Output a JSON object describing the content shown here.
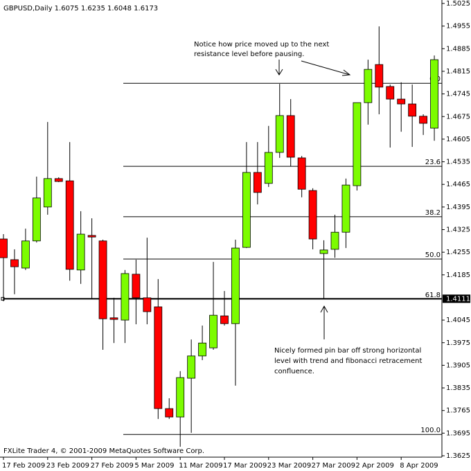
{
  "chart_data": {
    "type": "candlestick",
    "title": "GBPUSD,Daily  1.6075 1.6235 1.6048 1.6173",
    "footer": "FXLite Trader 4, © 2001-2009 MetaQuotes Software Corp.",
    "categories": [
      "17 Feb 2009",
      null,
      null,
      null,
      "23 Feb 2009",
      null,
      null,
      null,
      "27 Feb 2009",
      null,
      null,
      null,
      "5 Mar 2009",
      null,
      null,
      null,
      "11 Mar 2009",
      null,
      null,
      null,
      "17 Mar 2009",
      null,
      null,
      null,
      "23 Mar 2009",
      null,
      null,
      null,
      "27 Mar 2009",
      null,
      null,
      null,
      "2 Apr 2009",
      null,
      null,
      null,
      "8 Apr 2009",
      null,
      null,
      null
    ],
    "open": [
      1.4296,
      1.4232,
      1.4206,
      1.429,
      1.4395,
      1.4483,
      1.4476,
      1.42,
      1.4307,
      1.429,
      1.4052,
      1.4045,
      1.4187,
      1.4114,
      1.4086,
      1.3771,
      1.3745,
      1.3865,
      1.3934,
      1.3959,
      1.4058,
      1.4034,
      1.427,
      1.4502,
      1.4468,
      1.4564,
      1.4678,
      1.4547,
      1.4446,
      1.4251,
      1.4264,
      1.4317,
      1.4461,
      1.4718,
      1.4836,
      1.4768,
      1.4729,
      1.4714,
      1.4676,
      1.4639
    ],
    "high": [
      1.4311,
      1.4264,
      1.4328,
      1.4489,
      1.4658,
      1.4487,
      1.4596,
      1.4382,
      1.436,
      1.4294,
      1.4114,
      1.42,
      1.4232,
      1.43,
      1.4172,
      1.3803,
      1.3887,
      1.3985,
      1.4028,
      1.4225,
      1.4135,
      1.4294,
      1.4596,
      1.4596,
      1.4646,
      1.4776,
      1.4729,
      1.4553,
      1.4453,
      1.4292,
      1.4371,
      1.4483,
      1.4718,
      1.4851,
      1.4954,
      1.4774,
      1.4781,
      1.4774,
      1.4682,
      1.4864
    ],
    "low": [
      1.4103,
      1.4125,
      1.42,
      1.4285,
      1.4371,
      1.4472,
      1.4167,
      1.4157,
      1.411,
      1.3953,
      1.3974,
      1.3974,
      1.4032,
      1.4032,
      1.3739,
      1.3739,
      1.3653,
      1.3696,
      1.3921,
      1.3953,
      1.4028,
      1.3842,
      1.4268,
      1.4403,
      1.4457,
      1.4547,
      1.4521,
      1.4425,
      1.4264,
      1.411,
      1.4238,
      1.4268,
      1.4446,
      1.465,
      1.4682,
      1.4579,
      1.4628,
      1.4581,
      1.4618,
      1.46
    ],
    "close": [
      1.4238,
      1.421,
      1.429,
      1.4423,
      1.4483,
      1.4474,
      1.4202,
      1.4311,
      1.4302,
      1.4049,
      1.4047,
      1.4189,
      1.4114,
      1.4071,
      1.3771,
      1.3745,
      1.3867,
      1.3934,
      1.3974,
      1.406,
      1.4034,
      1.4268,
      1.4502,
      1.444,
      1.4564,
      1.4678,
      1.4549,
      1.445,
      1.4296,
      1.4262,
      1.4317,
      1.4463,
      1.4718,
      1.4821,
      1.4766,
      1.4729,
      1.4714,
      1.4676,
      1.4654,
      1.4851
    ],
    "up_color": "#7cfc00",
    "down_color": "#ff0000",
    "ylim": [
      1.3625,
      1.5025
    ],
    "yticks": [
      1.5025,
      1.4955,
      1.4885,
      1.4815,
      1.4745,
      1.4675,
      1.4605,
      1.4535,
      1.4465,
      1.4395,
      1.4325,
      1.4255,
      1.4185,
      1.4045,
      1.3975,
      1.3905,
      1.3835,
      1.3765,
      1.3695,
      1.3625
    ],
    "fib_levels": {
      "labels": [
        "0.0",
        "23.6",
        "38.2",
        "50.0",
        "61.8",
        "100.0"
      ],
      "values": [
        1.4778,
        1.4521,
        1.4365,
        1.4234,
        1.411,
        1.3691
      ]
    },
    "current_price": 1.4111,
    "annotations": [
      {
        "lines": [
          "Notice how price moved up to the next",
          "resistance level before pausing."
        ]
      },
      {
        "lines": [
          "Nicely formed pin bar off strong horizontal",
          "level with trend and fibonacci retracement",
          "confluence."
        ]
      }
    ]
  }
}
